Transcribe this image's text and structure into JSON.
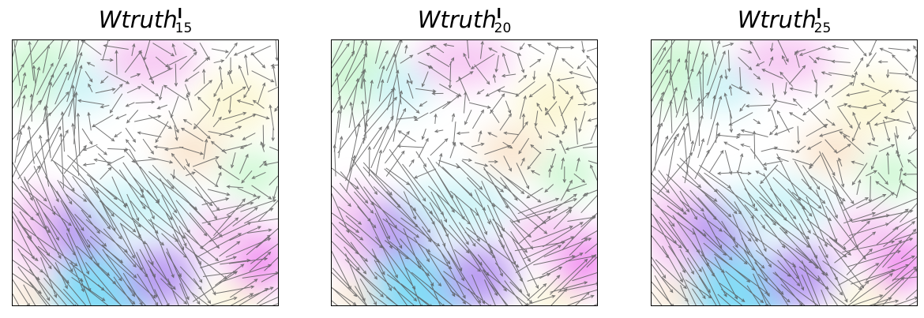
{
  "figure": {
    "panels": [
      {
        "title_main": "Wtruth",
        "title_sup": "l",
        "title_sub": "15"
      },
      {
        "title_main": "Wtruth",
        "title_sup": "l",
        "title_sub": "20"
      },
      {
        "title_main": "Wtruth",
        "title_sup": "l",
        "title_sub": "25"
      }
    ]
  },
  "colors": {
    "arrow": "#555555",
    "frame": "#000000",
    "blue": "#6fd6f5",
    "violet": "#b08cf0",
    "magenta": "#f07ef0",
    "pink": "#f6c2f2",
    "green": "#c9f7cf",
    "cyan": "#c8f3f7",
    "peach": "#f9e2c8",
    "yellow": "#fbf6cf"
  }
}
